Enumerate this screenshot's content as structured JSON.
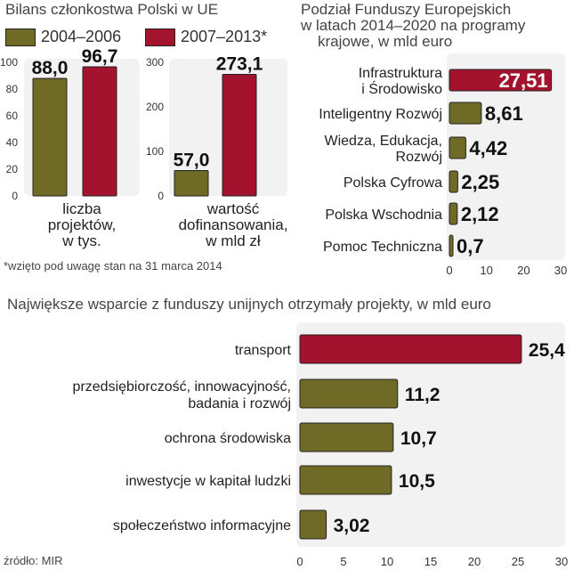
{
  "colors": {
    "olive": "#6f6a25",
    "red": "#a3132e",
    "panel": "#f2f2f2",
    "axis": "#777777"
  },
  "panel1": {
    "title": "Bilans członkostwa Polski w UE",
    "legend": [
      {
        "label": "2004–2006",
        "color": "#6f6a25"
      },
      {
        "label": "2007–2013*",
        "color": "#a3132e"
      }
    ],
    "footnote": "*wzięto pod uwagę stan na 31 marca 2014"
  },
  "panel2": {
    "title": [
      "Podział Funduszy Europejskich",
      "w latach 2014–2020 na programy",
      "krajowe, w mld euro"
    ]
  },
  "panel3": {
    "title": "Największe wsparcie z funduszy unijnych otrzymały projekty, w mld euro",
    "source": "źródło: MIR"
  },
  "chart_data": [
    {
      "type": "bar",
      "categories": [
        "2004–2006",
        "2007–2013*"
      ],
      "series": [
        {
          "values": [
            88.0,
            96.7
          ]
        }
      ],
      "value_labels": [
        "88,0",
        "96,7"
      ],
      "xlabel": [
        "liczba",
        "projektów,",
        "w tys."
      ],
      "ylim": [
        0,
        100
      ],
      "yticks": [
        0,
        20,
        40,
        60,
        80,
        100
      ],
      "ytick_labels": [
        "0",
        "20",
        "40",
        "60",
        "80",
        "100"
      ]
    },
    {
      "type": "bar",
      "categories": [
        "2004–2006",
        "2007–2013*"
      ],
      "series": [
        {
          "values": [
            57.0,
            273.1
          ]
        }
      ],
      "value_labels": [
        "57,0",
        "273,1"
      ],
      "xlabel": [
        "wartość",
        "dofinansowania,",
        "w mld zł"
      ],
      "ylim": [
        0,
        300
      ],
      "yticks": [
        0,
        100,
        200,
        300
      ],
      "ytick_labels": [
        "0",
        "100",
        "200",
        "300"
      ]
    },
    {
      "type": "bar",
      "orientation": "horizontal",
      "categories": [
        [
          "Infrastruktura",
          "i Środowisko"
        ],
        [
          "Inteligentny Rozwój"
        ],
        [
          "Wiedza, Edukacja,",
          "Rozwój"
        ],
        [
          "Polska Cyfrowa"
        ],
        [
          "Polska Wschodnia"
        ],
        [
          "Pomoc Techniczna"
        ]
      ],
      "values": [
        27.51,
        8.61,
        4.42,
        2.25,
        2.12,
        0.7
      ],
      "value_labels": [
        "27,51",
        "8,61",
        "4,42",
        "2,25",
        "2,12",
        "0,7"
      ],
      "highlight_index": 0,
      "xlim": [
        0,
        30
      ],
      "xticks": [
        0,
        10,
        20,
        30
      ]
    },
    {
      "type": "bar",
      "orientation": "horizontal",
      "categories": [
        [
          "transport"
        ],
        [
          "przedsiębiorczość, innowacyjność,",
          "badania i rozwój"
        ],
        [
          "ochrona środowiska"
        ],
        [
          "inwestycje w kapitał ludzki"
        ],
        [
          "społeczeństwo informacyjne"
        ]
      ],
      "values": [
        25.4,
        11.2,
        10.7,
        10.5,
        3.02
      ],
      "value_labels": [
        "25,4",
        "11,2",
        "10,7",
        "10,5",
        "3,02"
      ],
      "highlight_index": 0,
      "xlim": [
        0,
        30
      ],
      "xticks": [
        0,
        5,
        10,
        15,
        20,
        25,
        30
      ]
    }
  ]
}
